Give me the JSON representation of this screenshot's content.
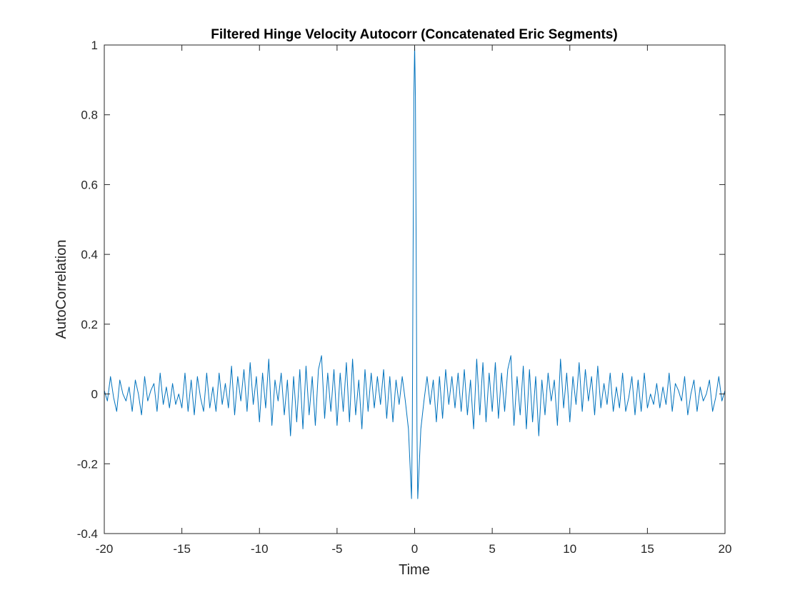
{
  "chart_data": {
    "type": "line",
    "title": "Filtered Hinge Velocity Autocorr (Concatenated Eric Segments)",
    "xlabel": "Time",
    "ylabel": "AutoCorrelation",
    "xlim": [
      -20,
      20
    ],
    "ylim": [
      -0.4,
      1
    ],
    "xticks": [
      -20,
      -15,
      -10,
      -5,
      0,
      5,
      10,
      15,
      20
    ],
    "xtick_labels": [
      "-20",
      "-15",
      "-10",
      "-5",
      "0",
      "5",
      "10",
      "15",
      "20"
    ],
    "yticks": [
      -0.4,
      -0.2,
      0,
      0.2,
      0.4,
      0.6,
      0.8,
      1
    ],
    "ytick_labels": [
      "-0.4",
      "-0.2",
      "0",
      "0.2",
      "0.4",
      "0.6",
      "0.8",
      "1"
    ],
    "grid": false,
    "legend": "none",
    "line_color": "#0072BD",
    "series": [
      {
        "x": [
          -20,
          -19.8,
          -19.6,
          -19.4,
          -19.2,
          -19.0,
          -18.8,
          -18.6,
          -18.4,
          -18.2,
          -18.0,
          -17.8,
          -17.6,
          -17.4,
          -17.2,
          -17.0,
          -16.8,
          -16.6,
          -16.4,
          -16.2,
          -16.0,
          -15.8,
          -15.6,
          -15.4,
          -15.2,
          -15.0,
          -14.8,
          -14.6,
          -14.4,
          -14.2,
          -14.0,
          -13.8,
          -13.6,
          -13.4,
          -13.2,
          -13.0,
          -12.8,
          -12.6,
          -12.4,
          -12.2,
          -12.0,
          -11.8,
          -11.6,
          -11.4,
          -11.2,
          -11.0,
          -10.8,
          -10.6,
          -10.4,
          -10.2,
          -10.0,
          -9.8,
          -9.6,
          -9.4,
          -9.2,
          -9.0,
          -8.8,
          -8.6,
          -8.4,
          -8.2,
          -8.0,
          -7.8,
          -7.6,
          -7.4,
          -7.2,
          -7.0,
          -6.8,
          -6.6,
          -6.4,
          -6.2,
          -6.0,
          -5.8,
          -5.6,
          -5.4,
          -5.2,
          -5.0,
          -4.8,
          -4.6,
          -4.4,
          -4.2,
          -4.0,
          -3.8,
          -3.6,
          -3.4,
          -3.2,
          -3.0,
          -2.8,
          -2.6,
          -2.4,
          -2.2,
          -2.0,
          -1.8,
          -1.6,
          -1.4,
          -1.2,
          -1.0,
          -0.8,
          -0.6,
          -0.4,
          -0.3,
          -0.2,
          -0.15,
          -0.1,
          -0.05,
          0,
          0.05,
          0.1,
          0.15,
          0.2,
          0.3,
          0.4,
          0.6,
          0.8,
          1.0,
          1.2,
          1.4,
          1.6,
          1.8,
          2.0,
          2.2,
          2.4,
          2.6,
          2.8,
          3.0,
          3.2,
          3.4,
          3.6,
          3.8,
          4.0,
          4.2,
          4.4,
          4.6,
          4.8,
          5.0,
          5.2,
          5.4,
          5.6,
          5.8,
          6.0,
          6.2,
          6.4,
          6.6,
          6.8,
          7.0,
          7.2,
          7.4,
          7.6,
          7.8,
          8.0,
          8.2,
          8.4,
          8.6,
          8.8,
          9.0,
          9.2,
          9.4,
          9.6,
          9.8,
          10.0,
          10.2,
          10.4,
          10.6,
          10.8,
          11.0,
          11.2,
          11.4,
          11.6,
          11.8,
          12.0,
          12.2,
          12.4,
          12.6,
          12.8,
          13.0,
          13.2,
          13.4,
          13.6,
          13.8,
          14.0,
          14.2,
          14.4,
          14.6,
          14.8,
          15.0,
          15.2,
          15.4,
          15.6,
          15.8,
          16.0,
          16.2,
          16.4,
          16.6,
          16.8,
          17.0,
          17.2,
          17.4,
          17.6,
          17.8,
          18.0,
          18.2,
          18.4,
          18.6,
          18.8,
          19.0,
          19.2,
          19.4,
          19.6,
          19.8,
          20
        ],
        "y": [
          0.01,
          -0.02,
          0.05,
          -0.01,
          -0.05,
          0.04,
          0.0,
          -0.02,
          0.02,
          -0.05,
          0.04,
          0.0,
          -0.06,
          0.05,
          -0.02,
          0.01,
          0.03,
          -0.05,
          0.06,
          -0.03,
          0.02,
          -0.04,
          0.03,
          -0.03,
          0.0,
          -0.04,
          0.06,
          -0.05,
          0.04,
          -0.06,
          0.05,
          -0.01,
          -0.05,
          0.06,
          -0.04,
          0.02,
          -0.05,
          0.06,
          -0.03,
          0.03,
          -0.04,
          0.08,
          -0.06,
          0.05,
          -0.02,
          0.07,
          -0.05,
          0.09,
          -0.03,
          0.05,
          -0.08,
          0.06,
          -0.04,
          0.1,
          -0.09,
          0.04,
          -0.02,
          0.06,
          -0.06,
          0.04,
          -0.12,
          0.05,
          -0.08,
          0.07,
          -0.1,
          0.08,
          -0.06,
          0.05,
          -0.09,
          0.07,
          0.11,
          -0.07,
          0.06,
          -0.05,
          0.07,
          -0.09,
          0.06,
          -0.05,
          0.09,
          -0.08,
          0.1,
          -0.06,
          0.04,
          -0.1,
          0.07,
          -0.05,
          0.06,
          -0.04,
          0.05,
          -0.03,
          0.07,
          -0.07,
          0.05,
          -0.08,
          0.04,
          -0.03,
          0.05,
          -0.02,
          -0.1,
          -0.2,
          -0.3,
          -0.1,
          0.4,
          0.85,
          1.0,
          0.85,
          0.4,
          -0.1,
          -0.3,
          -0.2,
          -0.1,
          -0.02,
          0.05,
          -0.03,
          0.04,
          -0.08,
          0.05,
          -0.07,
          0.07,
          -0.03,
          0.05,
          -0.04,
          0.06,
          -0.05,
          0.07,
          -0.06,
          0.04,
          -0.1,
          0.1,
          -0.06,
          0.09,
          -0.08,
          0.06,
          -0.05,
          0.09,
          -0.07,
          0.06,
          -0.05,
          0.07,
          0.11,
          -0.09,
          0.05,
          -0.06,
          0.08,
          -0.1,
          0.07,
          -0.08,
          0.05,
          -0.12,
          0.04,
          -0.06,
          0.06,
          -0.02,
          0.04,
          -0.09,
          0.1,
          -0.04,
          0.06,
          -0.08,
          0.05,
          -0.03,
          0.09,
          -0.05,
          0.07,
          -0.02,
          0.05,
          -0.06,
          0.08,
          -0.04,
          0.03,
          -0.03,
          0.06,
          -0.05,
          0.02,
          -0.04,
          0.06,
          -0.05,
          -0.01,
          0.05,
          -0.06,
          0.04,
          -0.05,
          0.06,
          -0.04,
          0.0,
          -0.03,
          0.03,
          -0.04,
          0.02,
          -0.03,
          0.06,
          -0.05,
          0.03,
          0.01,
          -0.02,
          0.05,
          -0.06,
          0.0,
          0.04,
          -0.05,
          0.02,
          -0.02,
          0.0,
          0.04,
          -0.05,
          -0.01,
          0.05,
          -0.02,
          0.01
        ]
      }
    ]
  }
}
